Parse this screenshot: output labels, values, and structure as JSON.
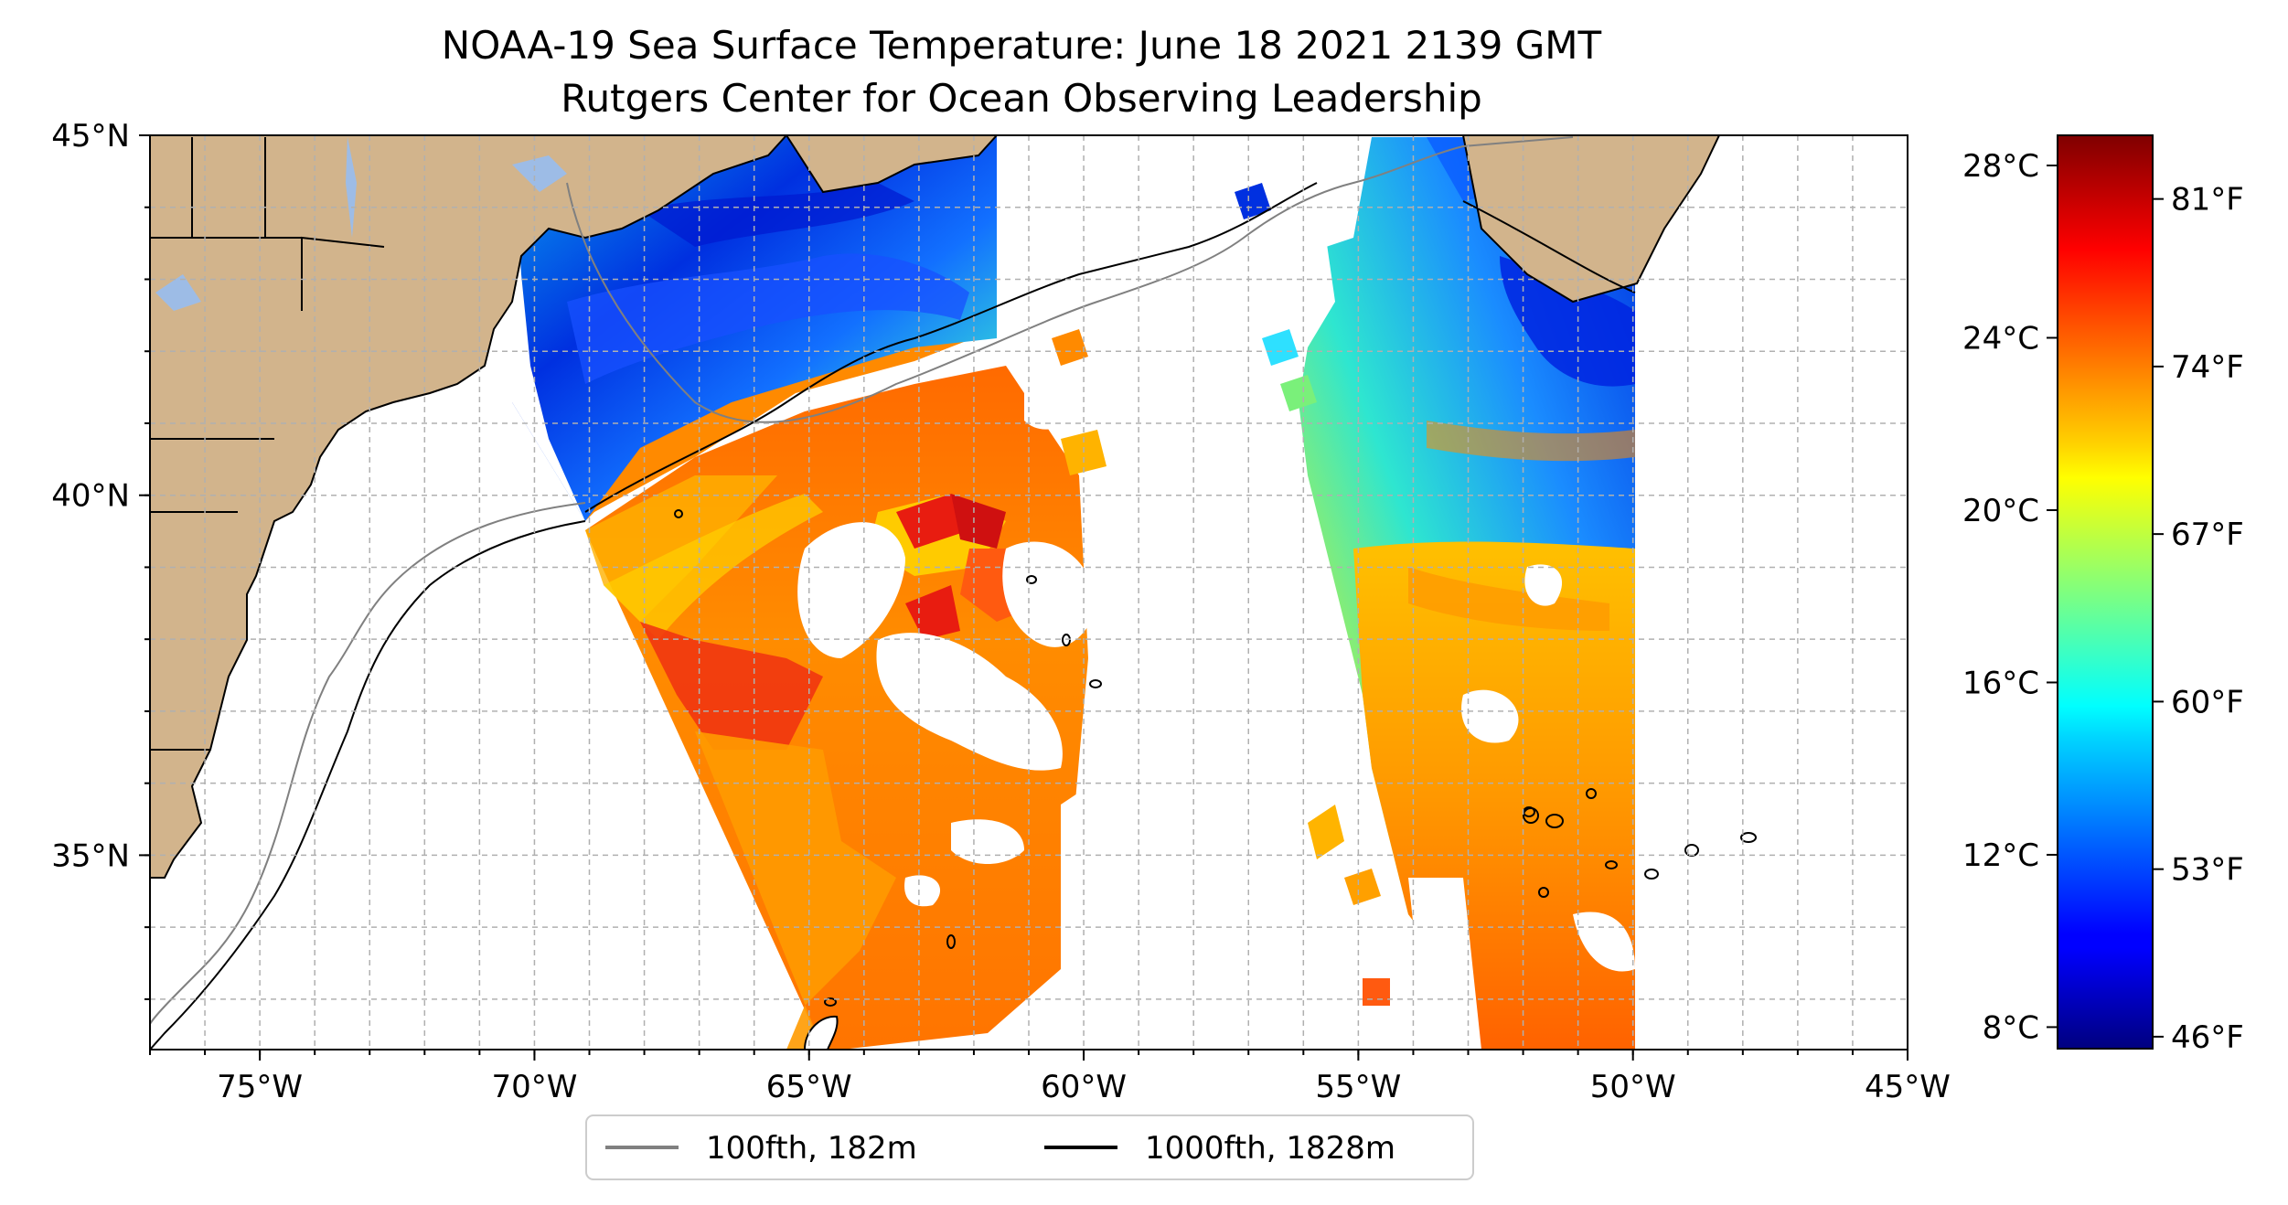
{
  "title": {
    "line1": "NOAA-19 Sea Surface Temperature: June 18 2021 2139 GMT",
    "line2": "Rutgers Center for Ocean Observing Leadership"
  },
  "map": {
    "lon_range": [
      -77,
      -45
    ],
    "lat_range": [
      32.3,
      45
    ],
    "lon_ticks": [
      {
        "value": -75,
        "label": "75°W"
      },
      {
        "value": -70,
        "label": "70°W"
      },
      {
        "value": -65,
        "label": "65°W"
      },
      {
        "value": -60,
        "label": "60°W"
      },
      {
        "value": -55,
        "label": "55°W"
      },
      {
        "value": -50,
        "label": "50°W"
      },
      {
        "value": -45,
        "label": "45°W"
      }
    ],
    "lat_ticks": [
      {
        "value": 45,
        "label": "45°N"
      },
      {
        "value": 40,
        "label": "40°N"
      },
      {
        "value": 35,
        "label": "35°N"
      }
    ],
    "grid": "dashed, 1° spacing",
    "colors": {
      "land": "#d2b48c",
      "lakes": "#9dbce6",
      "isobath_100fth": "#808080",
      "isobath_1000fth": "#000000",
      "no_data": "#ffffff"
    }
  },
  "legend": {
    "placement": "bottom-center, below map",
    "items": [
      {
        "label": "100fth, 182m",
        "color": "#808080"
      },
      {
        "label": "1000fth, 1828m",
        "color": "#000000"
      }
    ]
  },
  "colorbar": {
    "colormap": "jet",
    "range_c": [
      7.5,
      28.7
    ],
    "celsius_ticks": [
      {
        "value": 8,
        "label": "8°C"
      },
      {
        "value": 12,
        "label": "12°C"
      },
      {
        "value": 16,
        "label": "16°C"
      },
      {
        "value": 20,
        "label": "20°C"
      },
      {
        "value": 24,
        "label": "24°C"
      },
      {
        "value": 28,
        "label": "28°C"
      }
    ],
    "fahrenheit_ticks": [
      {
        "value": 46,
        "label": "46°F"
      },
      {
        "value": 53,
        "label": "53°F"
      },
      {
        "value": 60,
        "label": "60°F"
      },
      {
        "value": 67,
        "label": "67°F"
      },
      {
        "value": 74,
        "label": "74°F"
      },
      {
        "value": 81,
        "label": "81°F"
      }
    ]
  }
}
